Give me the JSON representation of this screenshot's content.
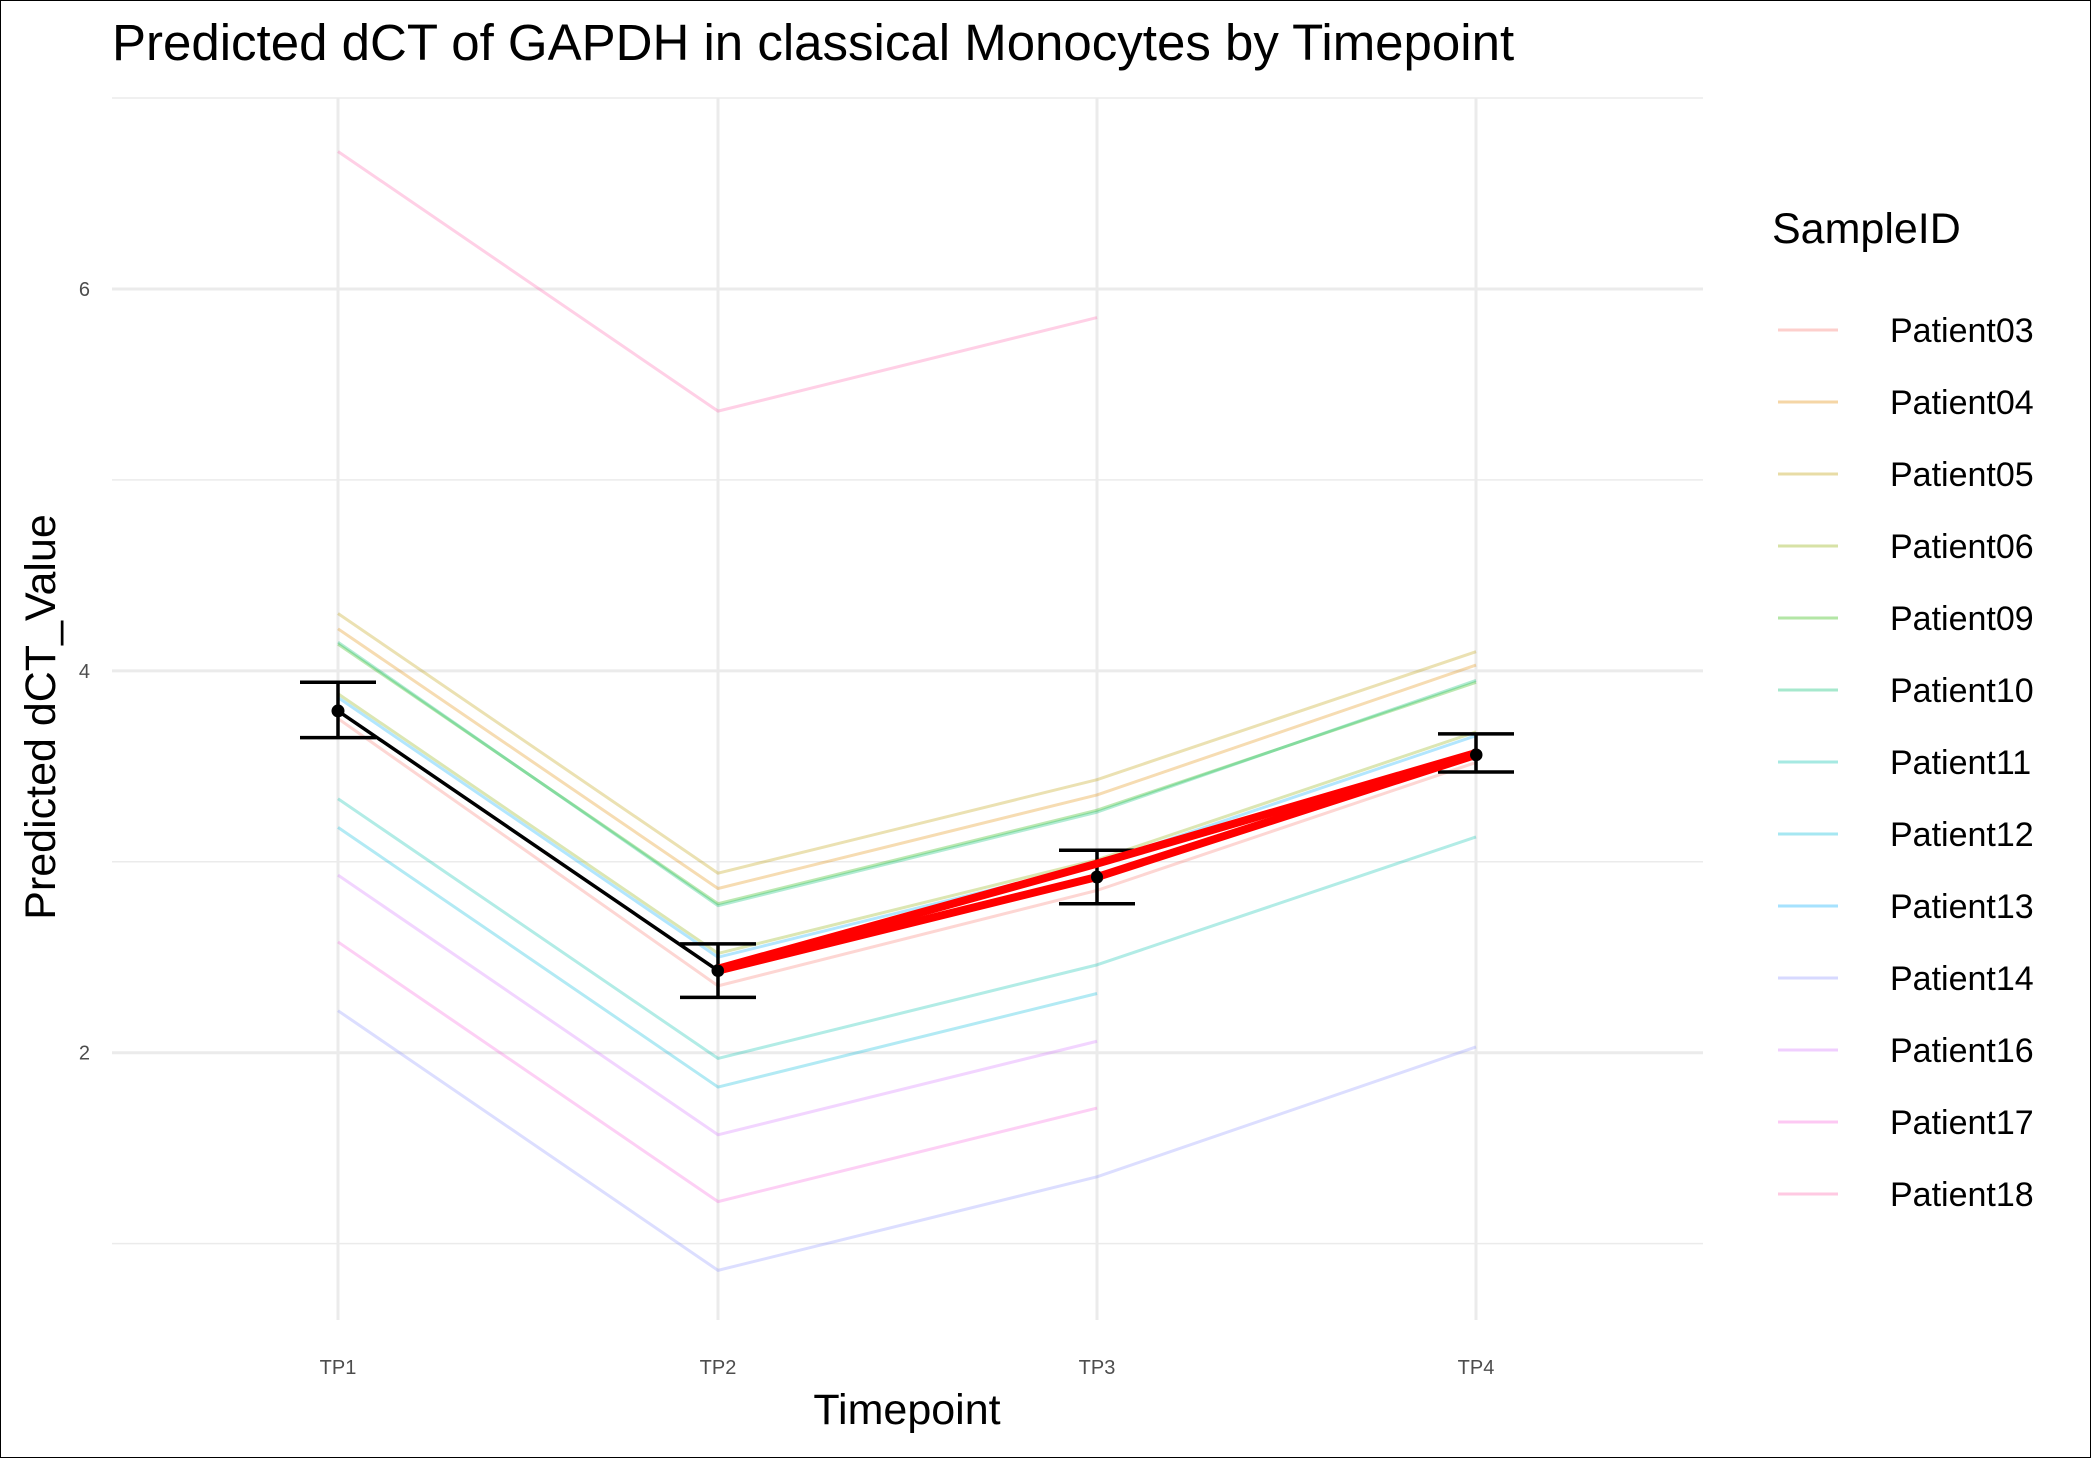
{
  "chart_data": {
    "type": "line",
    "title": "Predicted dCT of  GAPDH in  classical  Monocytes by Timepoint",
    "xlabel": "Timepoint",
    "ylabel": "Predicted dCT_Value",
    "categories": [
      "TP1",
      "TP2",
      "TP3",
      "TP4"
    ],
    "ylim": [
      0.6,
      7.0
    ],
    "y_major_ticks": [
      2,
      4,
      6
    ],
    "y_minor_ticks": [
      1,
      3,
      5,
      7
    ],
    "grid": true,
    "legend_title": "SampleID",
    "legend_position": "right",
    "series": [
      {
        "name": "Patient03",
        "color": "#F8766D",
        "values": [
          3.75,
          2.35,
          2.85,
          3.52
        ]
      },
      {
        "name": "Patient04",
        "color": "#E18A00",
        "values": [
          4.22,
          2.86,
          3.35,
          4.03
        ]
      },
      {
        "name": "Patient05",
        "color": "#BE9C00",
        "values": [
          4.3,
          2.94,
          3.43,
          4.1
        ]
      },
      {
        "name": "Patient06",
        "color": "#8CAB00",
        "values": [
          3.88,
          2.52,
          3.01,
          3.68
        ]
      },
      {
        "name": "Patient09",
        "color": "#24B700",
        "values": [
          4.14,
          2.78,
          3.27,
          3.94
        ]
      },
      {
        "name": "Patient10",
        "color": "#00BE70",
        "values": [
          4.15,
          2.77,
          3.26,
          3.95
        ]
      },
      {
        "name": "Patient11",
        "color": "#00C1AB",
        "values": [
          3.33,
          1.97,
          2.46,
          3.13
        ]
      },
      {
        "name": "Patient12",
        "color": "#00BBDA",
        "values": [
          3.18,
          1.82,
          2.31,
          null
        ]
      },
      {
        "name": "Patient13",
        "color": "#00ACFC",
        "values": [
          3.86,
          2.5,
          2.99,
          3.66
        ]
      },
      {
        "name": "Patient14",
        "color": "#8B93FF",
        "values": [
          2.22,
          0.86,
          1.35,
          2.03
        ]
      },
      {
        "name": "Patient16",
        "color": "#D575FE",
        "values": [
          2.93,
          1.57,
          2.06,
          null
        ]
      },
      {
        "name": "Patient17",
        "color": "#F962DD",
        "values": [
          2.58,
          1.22,
          1.71,
          null
        ]
      },
      {
        "name": "Patient18",
        "color": "#FF65AC",
        "values": [
          6.72,
          5.36,
          5.85,
          null
        ]
      }
    ],
    "mean": {
      "values": [
        3.79,
        2.43,
        2.92,
        3.56
      ],
      "err_low": [
        3.65,
        2.29,
        2.78,
        3.47
      ],
      "err_high": [
        3.94,
        2.57,
        3.06,
        3.67
      ],
      "color": "#000000"
    },
    "highlight": {
      "color": "#FF0000",
      "paths": [
        {
          "x": [
            "TP2",
            "TP3",
            "TP4"
          ],
          "values": [
            2.44,
            2.99,
            3.57
          ]
        },
        {
          "x": [
            "TP2",
            "TP3",
            "TP4"
          ],
          "values": [
            2.43,
            2.92,
            3.56
          ]
        }
      ]
    }
  }
}
